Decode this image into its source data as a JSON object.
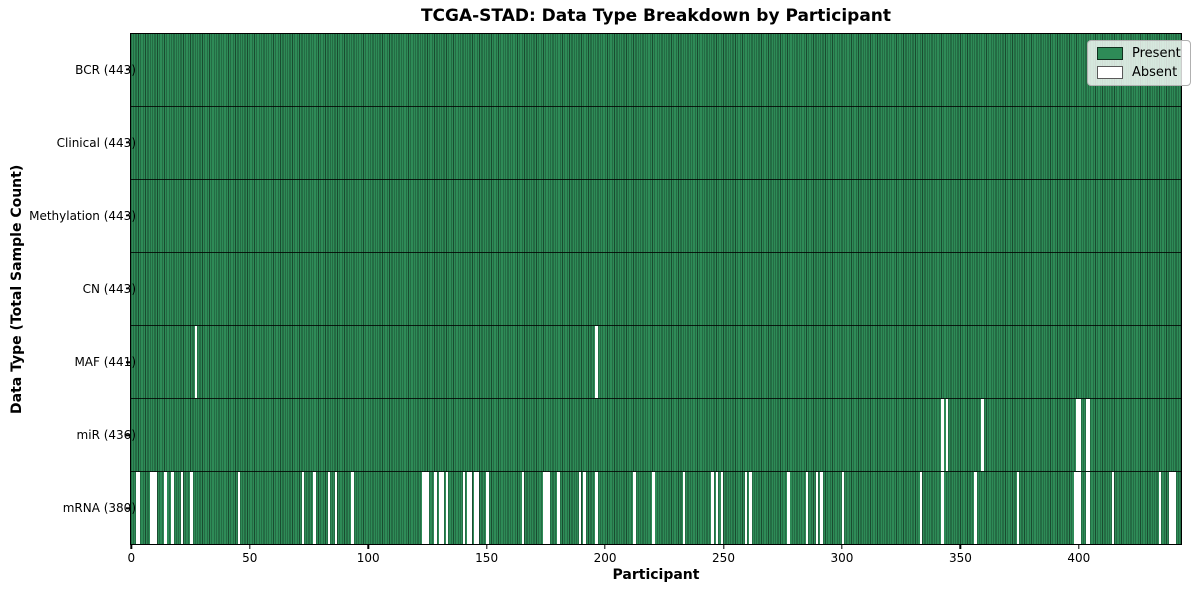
{
  "chart_data": {
    "type": "heatmap",
    "title": "TCGA-STAD: Data Type Breakdown by Participant",
    "xlabel": "Participant",
    "ylabel": "Data Type (Total Sample Count)",
    "x_ticks": [
      0,
      50,
      100,
      150,
      200,
      250,
      300,
      350,
      400
    ],
    "x_max": 443,
    "grid": false,
    "legend_position": "upper right",
    "colors": {
      "present": "#2e8b57",
      "absent": "#ffffff",
      "cell_edge": "rgba(0,0,0,0.45)",
      "row_divider": "rgba(0,0,0,0.8)"
    },
    "legend": {
      "entries": [
        {
          "label": "Present",
          "color": "#2e8b57"
        },
        {
          "label": "Absent",
          "color": "#ffffff"
        }
      ]
    },
    "rows": [
      {
        "label": "BCR (443)",
        "name": "BCR",
        "total": 443,
        "absent": []
      },
      {
        "label": "Clinical (443)",
        "name": "Clinical",
        "total": 443,
        "absent": []
      },
      {
        "label": "Methylation (443)",
        "name": "Methylation",
        "total": 443,
        "absent": []
      },
      {
        "label": "CN (443)",
        "name": "CN",
        "total": 443,
        "absent": []
      },
      {
        "label": "MAF (441)",
        "name": "MAF",
        "total": 441,
        "absent": [
          27,
          196
        ]
      },
      {
        "label": "miR (436)",
        "name": "miR",
        "total": 436,
        "absent": [
          342,
          344,
          359,
          399,
          400,
          403,
          404
        ]
      },
      {
        "label": "mRNA (380)",
        "name": "mRNA",
        "total": 380,
        "absent": [
          2,
          3,
          8,
          9,
          10,
          14,
          17,
          21,
          25,
          45,
          72,
          77,
          83,
          86,
          93,
          123,
          124,
          125,
          128,
          130,
          131,
          133,
          140,
          142,
          143,
          145,
          146,
          150,
          165,
          174,
          175,
          176,
          180,
          189,
          191,
          196,
          212,
          220,
          233,
          245,
          247,
          249,
          259,
          261,
          277,
          285,
          289,
          291,
          300,
          333,
          342,
          356,
          374,
          398,
          399,
          400,
          403,
          404,
          414,
          434,
          438,
          439,
          440
        ]
      }
    ]
  }
}
